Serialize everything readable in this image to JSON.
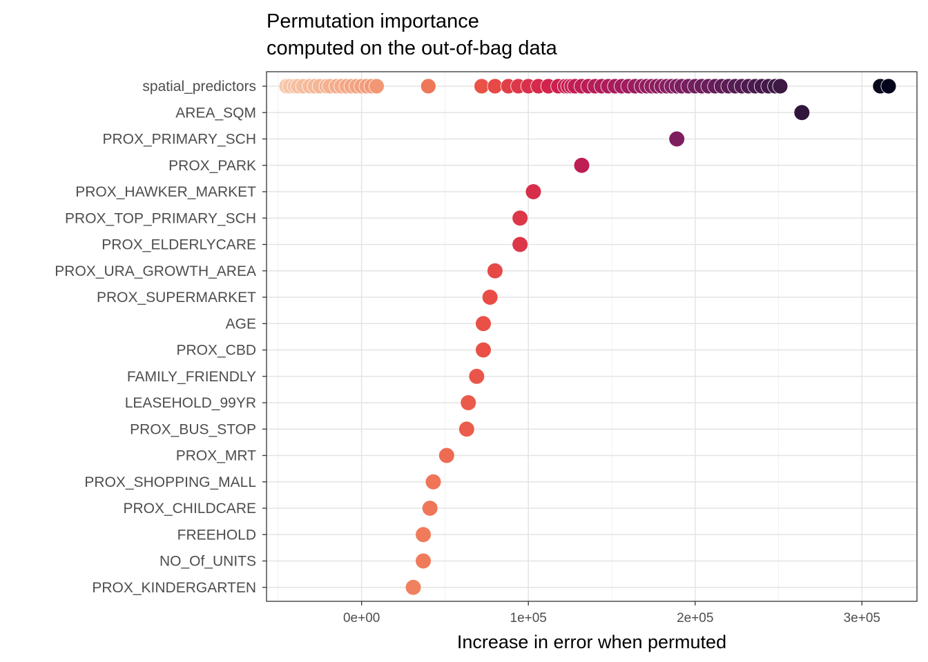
{
  "chart_data": {
    "type": "scatter",
    "title": "Permutation importance",
    "subtitle": "computed on the out-of-bag data",
    "xlabel": "Increase in error when permuted",
    "ylabel": "",
    "xlim": [
      -57000,
      333000
    ],
    "x_ticks": [
      {
        "value": 0,
        "label": "0e+00"
      },
      {
        "value": 100000,
        "label": "1e+05"
      },
      {
        "value": 200000,
        "label": "2e+05"
      },
      {
        "value": 300000,
        "label": "3e+05"
      }
    ],
    "grid": true,
    "legend": "none",
    "color_scale": {
      "name": "rocket",
      "stops": [
        "#F6C6A8",
        "#F3A583",
        "#F07D5C",
        "#E94E45",
        "#CF1F4E",
        "#A51C5D",
        "#771E5F",
        "#4A1A4E",
        "#241432",
        "#03051A"
      ],
      "domain": [
        -45000,
        316000
      ]
    },
    "variables": [
      {
        "name": "spatial_predictors",
        "values": [
          -45000,
          -43000,
          -40000,
          -38000,
          -35000,
          -31000,
          -28000,
          -25000,
          -21000,
          -19000,
          -15000,
          -12000,
          -9000,
          -6000,
          -3000,
          0,
          3000,
          6000,
          9000,
          40000,
          72000,
          80000,
          88000,
          94000,
          100000,
          106000,
          112000,
          118000,
          122000,
          124000,
          126000,
          128000,
          132000,
          136000,
          140000,
          144000,
          148000,
          152000,
          156000,
          160000,
          164000,
          168000,
          171000,
          174000,
          177000,
          180000,
          183000,
          186000,
          189000,
          192000,
          196000,
          200000,
          204000,
          208000,
          212000,
          216000,
          220000,
          224000,
          228000,
          232000,
          236000,
          240000,
          244000,
          248000,
          251000,
          311000,
          316000
        ]
      },
      {
        "name": "AREA_SQM",
        "values": [
          264000
        ]
      },
      {
        "name": "PROX_PRIMARY_SCH",
        "values": [
          189000
        ]
      },
      {
        "name": "PROX_PARK",
        "values": [
          132000
        ]
      },
      {
        "name": "PROX_HAWKER_MARKET",
        "values": [
          103000
        ]
      },
      {
        "name": "PROX_TOP_PRIMARY_SCH",
        "values": [
          95000
        ]
      },
      {
        "name": "PROX_ELDERLYCARE",
        "values": [
          95000
        ]
      },
      {
        "name": "PROX_URA_GROWTH_AREA",
        "values": [
          80000
        ]
      },
      {
        "name": "PROX_SUPERMARKET",
        "values": [
          77000
        ]
      },
      {
        "name": "AGE",
        "values": [
          73000
        ]
      },
      {
        "name": "PROX_CBD",
        "values": [
          73000
        ]
      },
      {
        "name": "FAMILY_FRIENDLY",
        "values": [
          69000
        ]
      },
      {
        "name": "LEASEHOLD_99YR",
        "values": [
          64000
        ]
      },
      {
        "name": "PROX_BUS_STOP",
        "values": [
          63000
        ]
      },
      {
        "name": "PROX_MRT",
        "values": [
          51000
        ]
      },
      {
        "name": "PROX_SHOPPING_MALL",
        "values": [
          43000
        ]
      },
      {
        "name": "PROX_CHILDCARE",
        "values": [
          41000
        ]
      },
      {
        "name": "FREEHOLD",
        "values": [
          37000
        ]
      },
      {
        "name": "NO_Of_UNITS",
        "values": [
          37000
        ]
      },
      {
        "name": "PROX_KINDERGARTEN",
        "values": [
          31000
        ]
      }
    ]
  }
}
